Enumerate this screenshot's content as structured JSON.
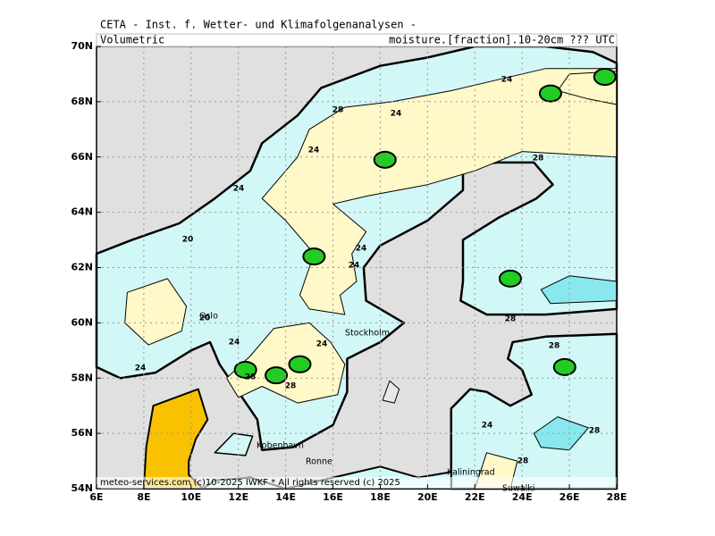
{
  "header": {
    "title": "CETA - Inst. f. Wetter- und Klimafolgenanalysen -",
    "left": "Volumetric",
    "right": "moisture.[fraction].10-20cm  ??? UTC"
  },
  "footer": "meteo-services.com (c)10-2025 IWKF * All rights reserved (c) 2025",
  "map": {
    "lon_ticks": [
      "6E",
      "8E",
      "10E",
      "12E",
      "14E",
      "16E",
      "18E",
      "20E",
      "22E",
      "24E",
      "26E",
      "28E"
    ],
    "lat_ticks": [
      "54N",
      "56N",
      "58N",
      "60N",
      "62N",
      "64N",
      "66N",
      "68N",
      "70N"
    ],
    "cities": [
      "Oslo",
      "Stockholm",
      "Kobenhavn",
      "Ronne",
      "Kaliningrad",
      "Suwalki"
    ],
    "contour_labels": [
      "24",
      "24",
      "28",
      "24",
      "24",
      "28",
      "20",
      "24",
      "24",
      "24",
      "28",
      "24",
      "24",
      "28",
      "28",
      "24",
      "28",
      "28",
      "28",
      "20"
    ]
  }
}
